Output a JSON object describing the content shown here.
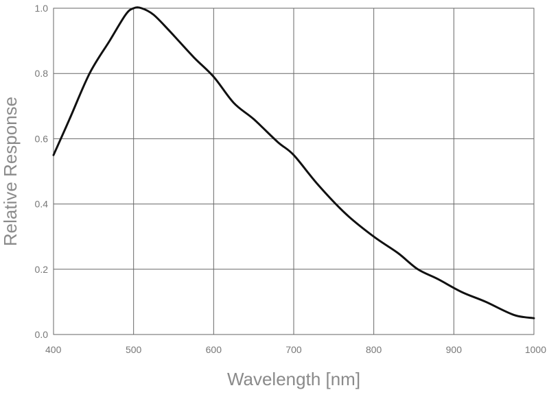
{
  "chart_data": {
    "type": "line",
    "xlabel": "Wavelength [nm]",
    "ylabel": "Relative Response",
    "xlim": [
      400,
      1000
    ],
    "ylim": [
      0.0,
      1.0
    ],
    "x_ticks": [
      400,
      500,
      600,
      700,
      800,
      900,
      1000
    ],
    "y_ticks": [
      0.0,
      0.2,
      0.4,
      0.6,
      0.8,
      1.0
    ],
    "x_tick_labels": [
      "400",
      "500",
      "600",
      "700",
      "800",
      "900",
      "1000"
    ],
    "y_tick_labels": [
      "0.0",
      "0.2",
      "0.4",
      "0.6",
      "0.8",
      "1.0"
    ],
    "grid": true,
    "series": [
      {
        "x": [
          400,
          420,
          445,
          470,
          490,
          500,
          510,
          525,
          545,
          575,
          600,
          625,
          650,
          680,
          700,
          730,
          765,
          800,
          830,
          855,
          880,
          910,
          940,
          975,
          1000
        ],
        "y": [
          0.55,
          0.66,
          0.8,
          0.9,
          0.98,
          1.0,
          1.0,
          0.98,
          0.93,
          0.85,
          0.79,
          0.71,
          0.66,
          0.59,
          0.55,
          0.46,
          0.37,
          0.3,
          0.25,
          0.2,
          0.17,
          0.13,
          0.1,
          0.06,
          0.05
        ]
      }
    ]
  }
}
